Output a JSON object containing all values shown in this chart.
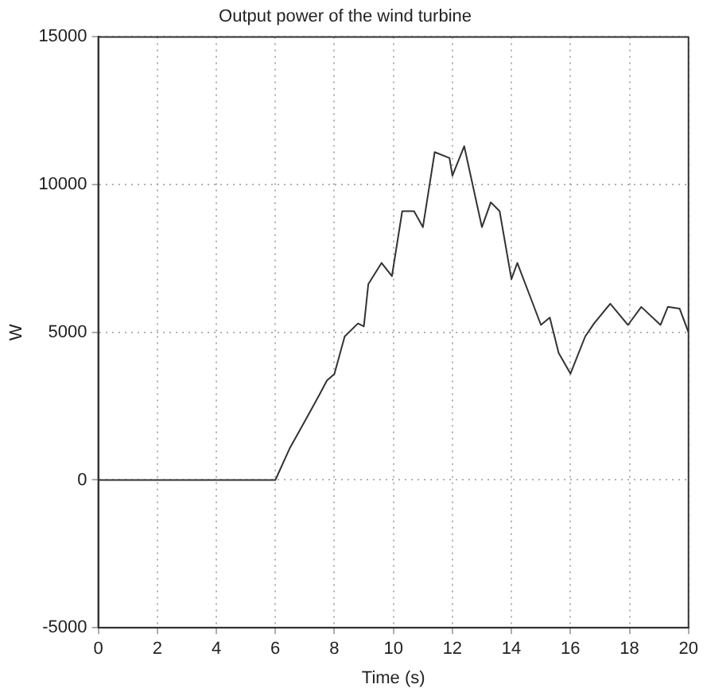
{
  "chart_data": {
    "type": "line",
    "title": "Output power of the wind turbine",
    "xlabel": "Time (s)",
    "ylabel": "W",
    "x": [
      0,
      6,
      6.5,
      7,
      7.5,
      7.75,
      8,
      8.35,
      8.8,
      9,
      9.15,
      9.6,
      9.95,
      10.3,
      10.7,
      11,
      11.4,
      11.9,
      12,
      12.4,
      13,
      13.3,
      13.6,
      14,
      14.2,
      14.6,
      15,
      15.3,
      15.6,
      16,
      16.5,
      16.8,
      17.35,
      17.95,
      18.4,
      19.05,
      19.3,
      19.7,
      20
    ],
    "series": [
      {
        "color": "#333333",
        "values": [
          0,
          0,
          1100,
          1990,
          2900,
          3370,
          3590,
          4860,
          5300,
          5200,
          6630,
          7350,
          6900,
          9100,
          9100,
          8560,
          11100,
          10900,
          10300,
          11300,
          8560,
          9400,
          9100,
          6800,
          7350,
          6300,
          5250,
          5500,
          4300,
          3600,
          4860,
          5300,
          5970,
          5250,
          5860,
          5250,
          5860,
          5800,
          5000
        ]
      }
    ],
    "xlim": [
      0,
      20
    ],
    "xticks": [
      0,
      2,
      4,
      6,
      8,
      10,
      12,
      14,
      16,
      18,
      20
    ],
    "ylim": [
      -5000,
      15000
    ],
    "yticks": [
      -5000,
      0,
      5000,
      10000,
      15000
    ],
    "grid": true,
    "legend": false,
    "marker": "none",
    "line_style": "solid"
  }
}
